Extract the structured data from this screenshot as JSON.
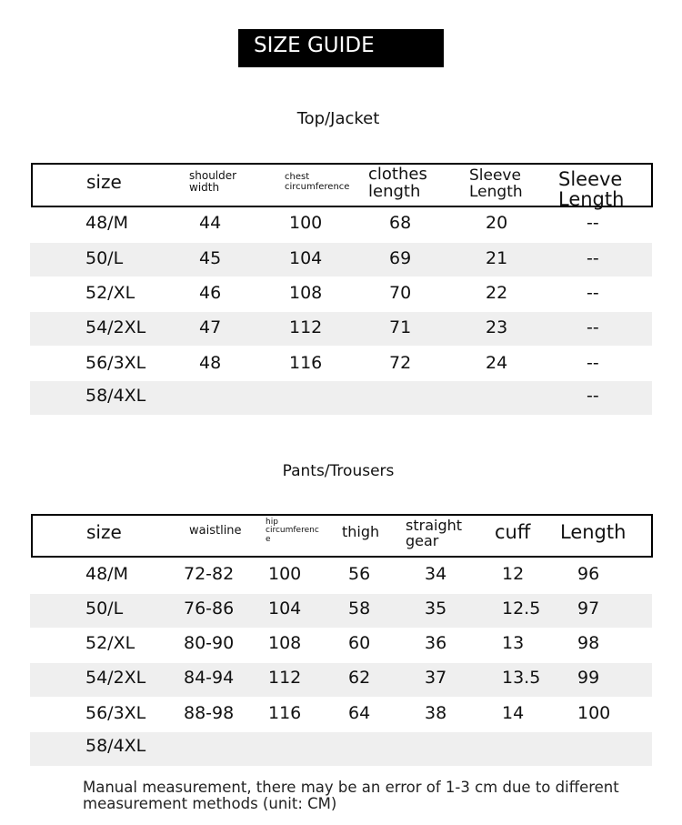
{
  "title": "SIZE GUIDE",
  "top": {
    "heading": "Top/Jacket",
    "headers": [
      "size",
      "shoulder\nwidth",
      "chest\ncircumference",
      "clothes\nlength",
      "Sleeve\nLength",
      "Sleeve\nLength"
    ],
    "rows": [
      [
        "48/M",
        "44",
        "100",
        "68",
        "20",
        "--"
      ],
      [
        "50/L",
        "45",
        "104",
        "69",
        "21",
        "--"
      ],
      [
        "52/XL",
        "46",
        "108",
        "70",
        "22",
        "--"
      ],
      [
        "54/2XL",
        "47",
        "112",
        "71",
        "23",
        "--"
      ],
      [
        "56/3XL",
        "48",
        "116",
        "72",
        "24",
        "--"
      ],
      [
        "58/4XL",
        "",
        "",
        "",
        "",
        "--"
      ]
    ]
  },
  "pants": {
    "heading": "Pants/Trousers",
    "headers": [
      "size",
      "waistline",
      "hip\ncircumferenc\ne",
      "thigh",
      "straight\ngear",
      "cuff",
      "Length"
    ],
    "rows": [
      [
        "48/M",
        "72-82",
        "100",
        "56",
        "34",
        "12",
        "96"
      ],
      [
        "50/L",
        "76-86",
        "104",
        "58",
        "35",
        "12.5",
        "97"
      ],
      [
        "52/XL",
        "80-90",
        "108",
        "60",
        "36",
        "13",
        "98"
      ],
      [
        "54/2XL",
        "84-94",
        "112",
        "62",
        "37",
        "13.5",
        "99"
      ],
      [
        "56/3XL",
        "88-98",
        "116",
        "64",
        "38",
        "14",
        "100"
      ],
      [
        "58/4XL",
        "",
        "",
        "",
        "",
        "",
        ""
      ]
    ]
  },
  "note": "Manual measurement, there may be an error of 1-3 cm due to different measurement methods (unit: CM)"
}
